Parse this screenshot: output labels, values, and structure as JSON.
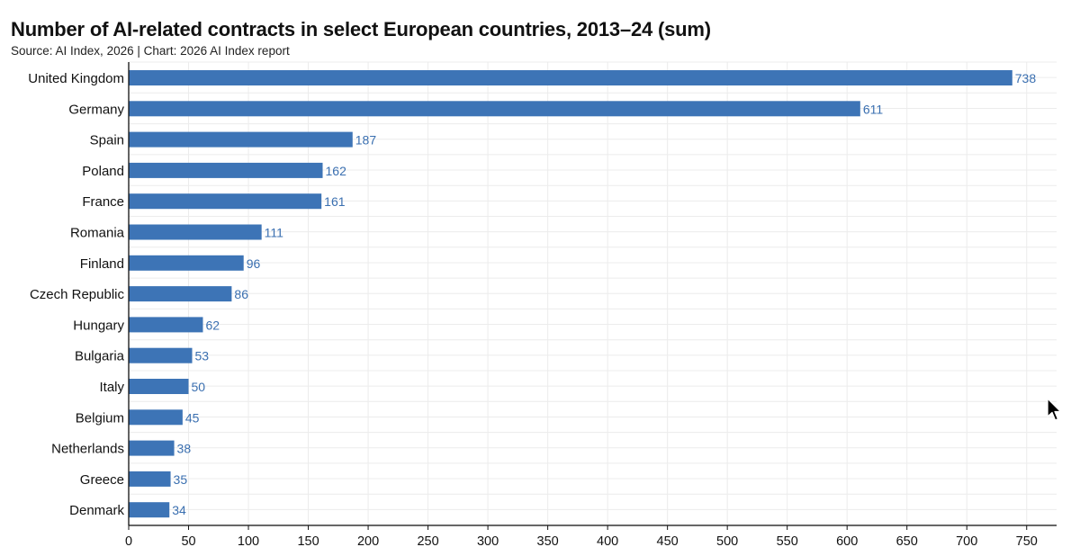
{
  "chart_data": {
    "type": "bar",
    "orientation": "horizontal",
    "title": "Number of AI-related contracts in select European countries, 2013–24 (sum)",
    "subtitle": "Source: AI Index, 2026 | Chart: 2026 AI Index report",
    "categories": [
      "United Kingdom",
      "Germany",
      "Spain",
      "Poland",
      "France",
      "Romania",
      "Finland",
      "Czech Republic",
      "Hungary",
      "Bulgaria",
      "Italy",
      "Belgium",
      "Netherlands",
      "Greece",
      "Denmark"
    ],
    "values": [
      738,
      611,
      187,
      162,
      161,
      111,
      96,
      86,
      62,
      53,
      50,
      45,
      38,
      35,
      34
    ],
    "xlim": [
      0,
      775
    ],
    "xticks": [
      0,
      50,
      100,
      150,
      200,
      250,
      300,
      350,
      400,
      450,
      500,
      550,
      600,
      650,
      700,
      750
    ],
    "grid": true,
    "bar_color": "#3d74b6",
    "label_color": "#3a6fb0",
    "grid_color": "#ececec"
  }
}
